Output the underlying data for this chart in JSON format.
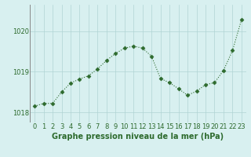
{
  "x": [
    0,
    1,
    2,
    3,
    4,
    5,
    6,
    7,
    8,
    9,
    10,
    11,
    12,
    13,
    14,
    15,
    16,
    17,
    18,
    19,
    20,
    21,
    22,
    23
  ],
  "y": [
    1018.15,
    1018.22,
    1018.22,
    1018.5,
    1018.72,
    1018.82,
    1018.9,
    1019.07,
    1019.28,
    1019.45,
    1019.58,
    1019.63,
    1019.58,
    1019.38,
    1018.83,
    1018.73,
    1018.58,
    1018.42,
    1018.52,
    1018.68,
    1018.73,
    1019.03,
    1019.52,
    1020.28
  ],
  "line_color": "#2d6a2d",
  "marker": "D",
  "marker_size": 2.5,
  "background_color": "#d8f0f0",
  "grid_color": "#b0d4d4",
  "xlabel": "Graphe pression niveau de la mer (hPa)",
  "xlabel_fontsize": 7,
  "xlabel_color": "#2d6a2d",
  "xlabel_bold": true,
  "yticks": [
    1018,
    1019,
    1020
  ],
  "ylim": [
    1017.75,
    1020.65
  ],
  "xlim": [
    -0.5,
    23.5
  ],
  "xticks": [
    0,
    1,
    2,
    3,
    4,
    5,
    6,
    7,
    8,
    9,
    10,
    11,
    12,
    13,
    14,
    15,
    16,
    17,
    18,
    19,
    20,
    21,
    22,
    23
  ],
  "tick_fontsize": 6,
  "tick_color": "#2d6a2d",
  "linewidth": 0.8
}
